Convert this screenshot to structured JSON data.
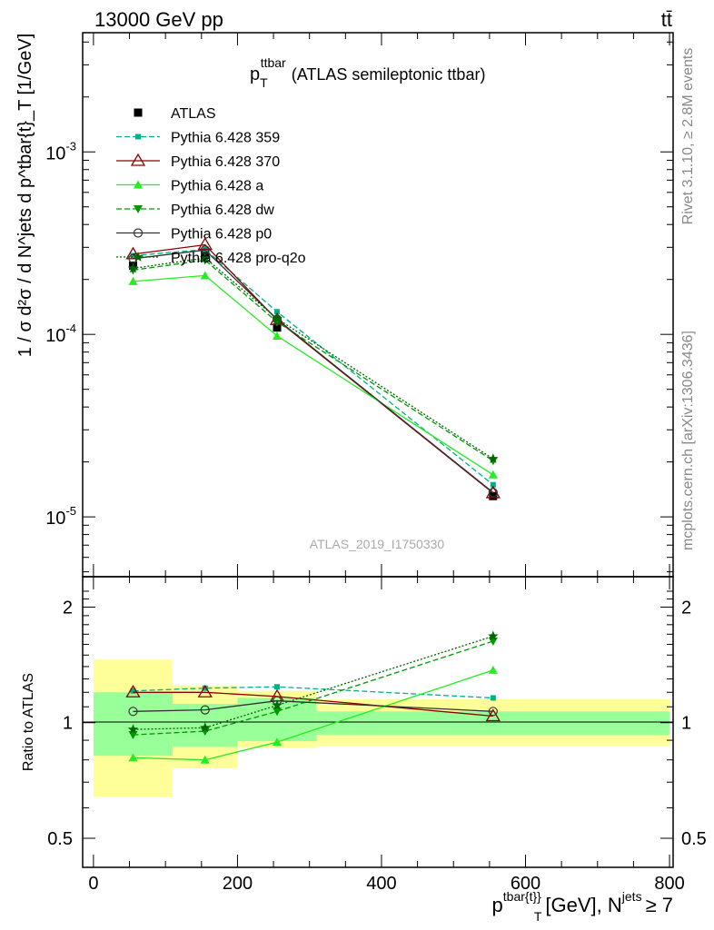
{
  "header": {
    "left": "13000 GeV pp",
    "right": "tt̄"
  },
  "side_labels": {
    "rivet": "Rivet 3.1.10, ≥ 2.8M events",
    "mcplots": "mcplots.cern.ch [arXiv:1306.3436]"
  },
  "watermark": "ATLAS_2019_I1750330",
  "colors": {
    "ATLAS": "#000000",
    "Pythia 6.428 359": "#00b08a",
    "Pythia 6.428 370": "#8b0000",
    "Pythia 6.428 a": "#22ee22",
    "Pythia 6.428 dw": "#009900",
    "Pythia 6.428 p0": "#333333",
    "Pythia 6.428 pro-q2o": "#006600",
    "band_inner": "#99ff99",
    "band_outer": "#ffff99"
  },
  "chart_data": [
    {
      "type": "line",
      "title": "p_T^ttbar (ATLAS semileptonic ttbar)",
      "title_main": "p",
      "title_sub": "T",
      "title_sup": "ttbar",
      "title_rest": "(ATLAS semileptonic ttbar)",
      "ylabel": "1 / σ d²σ / d N^jets d p^tbar{t}_T [1/GeV]",
      "yscale": "log",
      "ylim": [
        4.7e-06,
        0.0045
      ],
      "xlim": [
        -15,
        805
      ],
      "yticks": [
        {
          "value": 0.001,
          "base": "10",
          "exp": "-3"
        },
        {
          "value": 0.0001,
          "base": "10",
          "exp": "-4"
        },
        {
          "value": 1e-05,
          "base": "10",
          "exp": "-5"
        }
      ],
      "legend_position": "top-left",
      "series": [
        {
          "name": "ATLAS",
          "style": "data",
          "marker": "square",
          "dash": "",
          "x": [
            55,
            155,
            255,
            555
          ],
          "y": [
            0.000238,
            0.000275,
            0.000109,
            1.3e-05
          ],
          "xerr": [
            [
              0,
              110
            ],
            [
              110,
              200
            ],
            [
              200,
              310
            ],
            [
              310,
              800
            ]
          ]
        },
        {
          "name": "Pythia 6.428 359",
          "marker": "square-small",
          "dash": "6,3",
          "x": [
            55,
            155,
            255,
            555
          ],
          "y": [
            0.00027,
            0.000292,
            0.000133,
            1.5e-05
          ]
        },
        {
          "name": "Pythia 6.428 370",
          "marker": "triangle-open",
          "dash": "",
          "x": [
            55,
            155,
            255,
            555
          ],
          "y": [
            0.000275,
            0.00031,
            0.00012,
            1.35e-05
          ]
        },
        {
          "name": "Pythia 6.428 a",
          "marker": "triangle",
          "dash": "",
          "x": [
            55,
            155,
            255,
            555
          ],
          "y": [
            0.000195,
            0.00021,
            9.8e-05,
            1.7e-05
          ]
        },
        {
          "name": "Pythia 6.428 dw",
          "marker": "triangle-down",
          "dash": "6,3",
          "x": [
            55,
            155,
            255,
            555
          ],
          "y": [
            0.000225,
            0.000255,
            0.000117,
            2.03e-05
          ]
        },
        {
          "name": "Pythia 6.428 p0",
          "marker": "circle-open",
          "dash": "",
          "x": [
            55,
            155,
            255,
            555
          ],
          "y": [
            0.00026,
            0.00029,
            0.000121,
            1.36e-05
          ]
        },
        {
          "name": "Pythia 6.428 pro-q2o",
          "marker": "star",
          "dash": "2,2",
          "x": [
            55,
            155,
            255,
            555
          ],
          "y": [
            0.00023,
            0.000262,
            0.000122,
            2.08e-05
          ]
        }
      ]
    },
    {
      "type": "line",
      "ylabel": "Ratio to ATLAS",
      "xlabel": "p^tbar{t}_T [GeV], N^jets ≥ 7",
      "xlabel_main": "p",
      "xlabel_sup": "tbar{t}",
      "xlabel_brace": "}",
      "xlabel_sub": "T",
      "xlabel_unit": "[GeV], N",
      "xlabel_sup2": "jets",
      "xlabel_tail": "≥ 7",
      "yscale": "log",
      "ylim": [
        0.42,
        2.4
      ],
      "xlim": [
        -15,
        805
      ],
      "xticks": [
        0,
        200,
        400,
        600,
        800
      ],
      "yticks": [
        0.5,
        1,
        2
      ],
      "bands": [
        {
          "x": [
            0,
            110
          ],
          "inner": [
            0.82,
            1.2
          ],
          "outer": [
            0.64,
            1.46
          ]
        },
        {
          "x": [
            110,
            200
          ],
          "inner": [
            0.865,
            1.12
          ],
          "outer": [
            0.76,
            1.25
          ]
        },
        {
          "x": [
            200,
            310
          ],
          "inner": [
            0.895,
            1.16
          ],
          "outer": [
            0.86,
            1.21
          ]
        },
        {
          "x": [
            310,
            800
          ],
          "inner": [
            0.93,
            1.07
          ],
          "outer": [
            0.87,
            1.15
          ]
        }
      ],
      "series": [
        {
          "name": "Pythia 6.428 359",
          "x": [
            55,
            155,
            255,
            555
          ],
          "y": [
            1.21,
            1.23,
            1.24,
            1.16
          ]
        },
        {
          "name": "Pythia 6.428 370",
          "x": [
            55,
            155,
            255,
            555
          ],
          "y": [
            1.2,
            1.2,
            1.17,
            1.04
          ]
        },
        {
          "name": "Pythia 6.428 a",
          "x": [
            55,
            155,
            255,
            555
          ],
          "y": [
            0.81,
            0.8,
            0.89,
            1.37
          ]
        },
        {
          "name": "Pythia 6.428 dw",
          "x": [
            55,
            155,
            255,
            555
          ],
          "y": [
            0.93,
            0.95,
            1.07,
            1.63
          ]
        },
        {
          "name": "Pythia 6.428 p0",
          "x": [
            55,
            155,
            255,
            555
          ],
          "y": [
            1.07,
            1.08,
            1.14,
            1.07
          ]
        },
        {
          "name": "Pythia 6.428 pro-q2o",
          "x": [
            55,
            155,
            255,
            555
          ],
          "y": [
            0.96,
            0.97,
            1.11,
            1.68
          ]
        }
      ]
    }
  ]
}
